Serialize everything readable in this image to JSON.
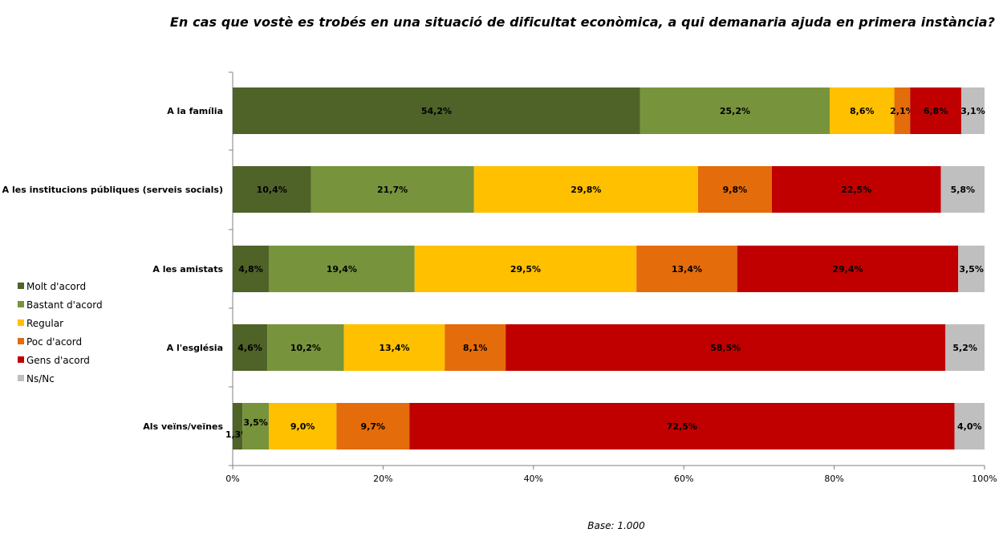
{
  "chart_data": {
    "type": "bar",
    "orientation": "horizontal",
    "stacked": true,
    "title": "En cas que vostè es trobés en una situació de dificultat econòmica, a qui demanaria ajuda en primera instància?",
    "categories": [
      "A la família",
      "A les institucions públiques (serveis socials)",
      "A les amistats",
      "A l'església",
      "Als veïns/veïnes"
    ],
    "series": [
      {
        "name": "Molt d'acord",
        "color": "#4f6228",
        "values": [
          54.2,
          10.4,
          4.8,
          4.6,
          1.3
        ],
        "labels": [
          "54,2%",
          "10,4%",
          "4,8%",
          "4,6%",
          "1,3%"
        ]
      },
      {
        "name": "Bastant d'acord",
        "color": "#77933c",
        "values": [
          25.2,
          21.7,
          19.4,
          10.2,
          3.5
        ],
        "labels": [
          "25,2%",
          "21,7%",
          "19,4%",
          "10,2%",
          "3,5%"
        ]
      },
      {
        "name": "Regular",
        "color": "#ffc000",
        "values": [
          8.6,
          29.8,
          29.5,
          13.4,
          9.0
        ],
        "labels": [
          "8,6%",
          "29,8%",
          "29,5%",
          "13,4%",
          "9,0%"
        ]
      },
      {
        "name": "Poc d'acord",
        "color": "#e46c0a",
        "values": [
          2.1,
          9.8,
          13.4,
          8.1,
          9.7
        ],
        "labels": [
          "2,1%",
          "9,8%",
          "13,4%",
          "8,1%",
          "9,7%"
        ]
      },
      {
        "name": "Gens d'acord",
        "color": "#c00000",
        "values": [
          6.8,
          22.5,
          29.4,
          58.5,
          72.5
        ],
        "labels": [
          "6,8%",
          "22,5%",
          "29,4%",
          "58,5%",
          "72,5%"
        ]
      },
      {
        "name": "Ns/Nc",
        "color": "#bfbfbf",
        "values": [
          3.1,
          5.8,
          3.5,
          5.2,
          4.0
        ],
        "labels": [
          "3,1%",
          "5,8%",
          "3,5%",
          "5,2%",
          "4,0%"
        ]
      }
    ],
    "xlim": [
      0,
      100
    ],
    "xticks": [
      "0%",
      "20%",
      "40%",
      "60%",
      "80%",
      "100%"
    ],
    "grid": false,
    "legend": "left-middle",
    "footnote": "Base: 1.000"
  }
}
